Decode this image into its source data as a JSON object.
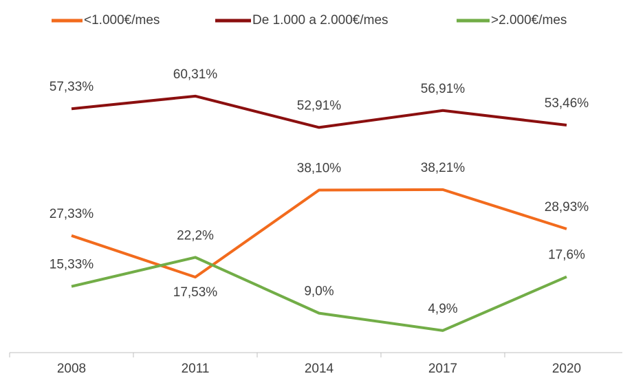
{
  "chart_data": {
    "type": "line",
    "categories": [
      "2008",
      "2011",
      "2014",
      "2017",
      "2020"
    ],
    "series": [
      {
        "name": "<1.000€/mes",
        "color": "#f26b1d",
        "values": [
          27.33,
          17.53,
          38.1,
          38.21,
          28.93
        ],
        "value_labels": [
          "27,33%",
          "17,53%",
          "38,10%",
          "38,21%",
          "28,93%"
        ]
      },
      {
        "name": "De 1.000 a 2.000€/mes",
        "color": "#8b0f0f",
        "values": [
          57.33,
          60.31,
          52.91,
          56.91,
          53.46
        ],
        "value_labels": [
          "57,33%",
          "60,31%",
          "52,91%",
          "56,91%",
          "53,46%"
        ]
      },
      {
        "name": ">2.000€/mes",
        "color": "#72ad47",
        "values": [
          15.33,
          22.2,
          9.0,
          4.9,
          17.6
        ],
        "value_labels": [
          "15,33%",
          "22,2%",
          "9,0%",
          "4,9%",
          "17,6%"
        ]
      }
    ],
    "ylim": [
      0,
      65
    ],
    "legend": "top"
  }
}
